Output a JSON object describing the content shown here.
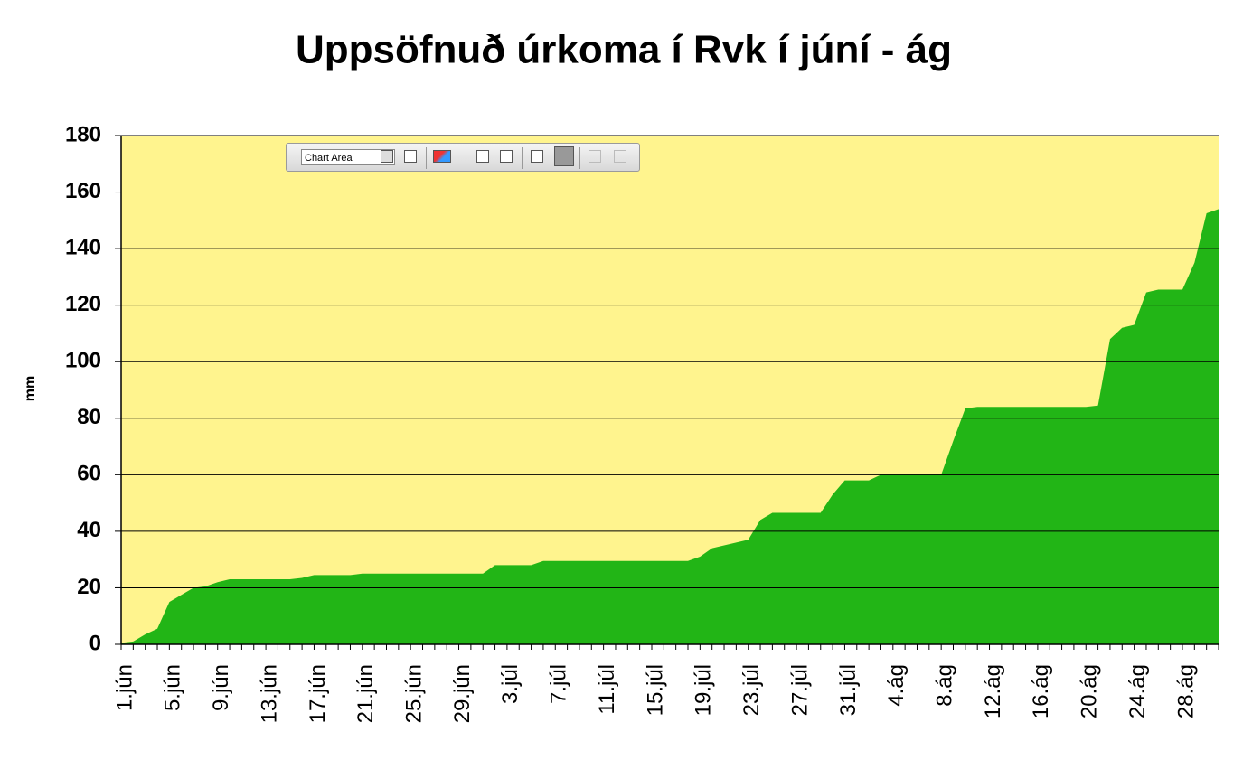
{
  "chart_data": {
    "type": "area",
    "title": "Uppsöfnuð úrkoma í Rvk í júní - ág",
    "ylabel": "mm",
    "color": "#22b516",
    "background": "#fff48e",
    "grid": true,
    "ylim": [
      0,
      180
    ],
    "yticks": [
      0,
      20,
      40,
      60,
      80,
      100,
      120,
      140,
      160,
      180
    ],
    "categories": [
      "1.jún",
      null,
      null,
      null,
      "5.jún",
      null,
      null,
      null,
      "9.jún",
      null,
      null,
      null,
      "13.jún",
      null,
      null,
      null,
      "17.jún",
      null,
      null,
      null,
      "21.jún",
      null,
      null,
      null,
      "25.jún",
      null,
      null,
      null,
      "29.jún",
      null,
      null,
      null,
      "3.júl",
      null,
      null,
      null,
      "7.júl",
      null,
      null,
      null,
      "11.júl",
      null,
      null,
      null,
      "15.júl",
      null,
      null,
      null,
      "19.júl",
      null,
      null,
      null,
      "23.júl",
      null,
      null,
      null,
      "27.júl",
      null,
      null,
      null,
      "31.júl",
      null,
      null,
      null,
      "4.ág",
      null,
      null,
      null,
      "8.ág",
      null,
      null,
      null,
      "12.ág",
      null,
      null,
      null,
      "16.ág",
      null,
      null,
      null,
      "20.ág",
      null,
      null,
      null,
      "24.ág",
      null,
      null,
      null,
      "28.ág",
      null,
      null,
      null
    ],
    "values": [
      0.5,
      1,
      3.5,
      5.5,
      15,
      17.5,
      20,
      20.5,
      22,
      23,
      23,
      23,
      23,
      23,
      23,
      23.5,
      24.5,
      24.5,
      24.5,
      24.5,
      25,
      25,
      25,
      25,
      25,
      25,
      25,
      25,
      25,
      25,
      25,
      28,
      28,
      28,
      28,
      29.5,
      29.5,
      29.5,
      29.5,
      29.5,
      29.5,
      29.5,
      29.5,
      29.5,
      29.5,
      29.5,
      29.5,
      29.5,
      31,
      34,
      35,
      36,
      37,
      44,
      46.5,
      46.5,
      46.5,
      46.5,
      46.5,
      53,
      58,
      58,
      58,
      60,
      60,
      60,
      60,
      60,
      60,
      72,
      83.5,
      84,
      84,
      84,
      84,
      84,
      84,
      84,
      84,
      84,
      84,
      84.5,
      108,
      112,
      113,
      124.5,
      125.5,
      125.5,
      125.5,
      135,
      152.5,
      154
    ]
  },
  "toolbar_selection": "Chart Area"
}
